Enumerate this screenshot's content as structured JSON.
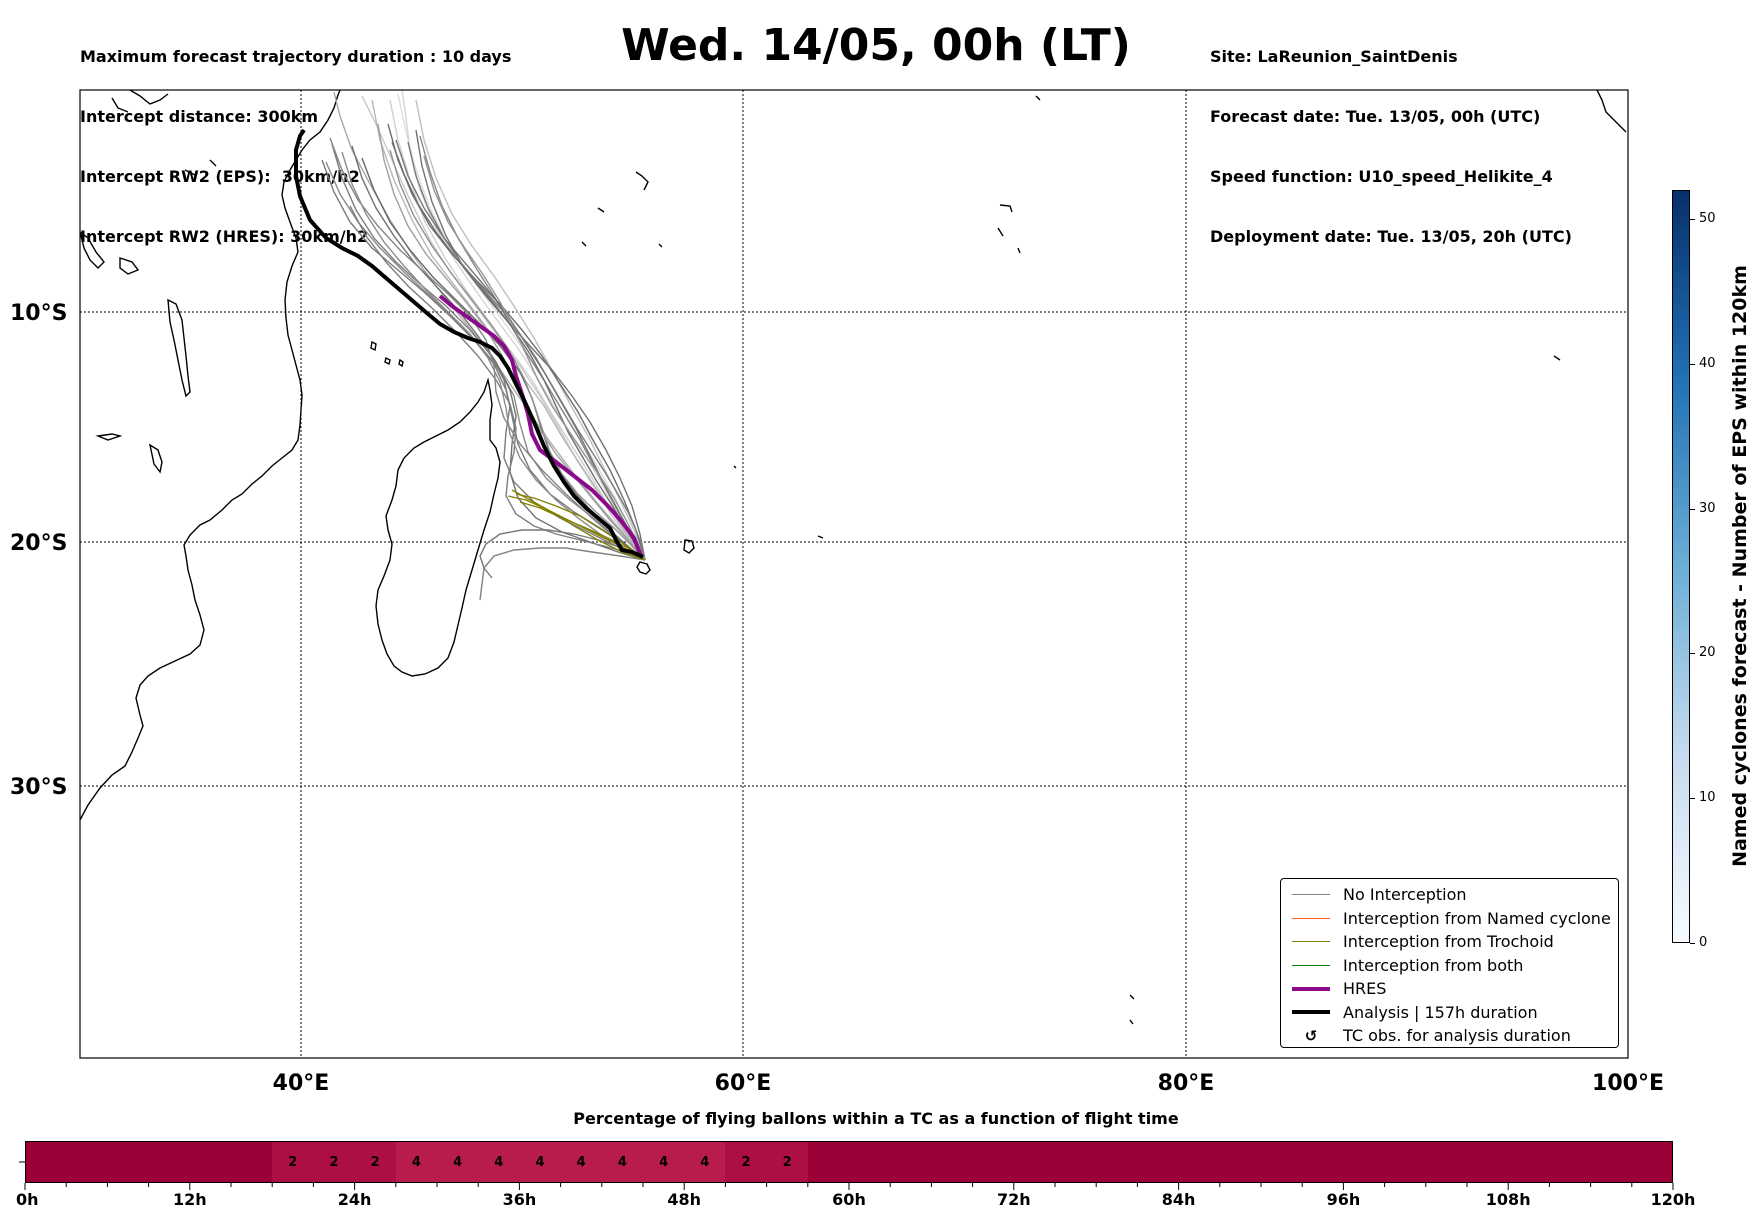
{
  "header": {
    "left_lines": [
      "Maximum forecast trajectory duration : 10 days",
      "Intercept distance: 300km",
      "Intercept RW2 (EPS):  30km/h2",
      "Intercept RW2 (HRES): 30km/h2"
    ],
    "title": "Wed. 14/05, 00h (LT)",
    "right_lines": [
      "Site: LaReunion_SaintDenis",
      "Forecast date: Tue. 13/05, 00h (UTC)",
      "Speed function: U10_speed_Helikite_4",
      "Deployment date: Tue. 13/05, 20h (UTC)"
    ]
  },
  "map": {
    "lat_labels": [
      "10°S",
      "20°S",
      "30°S"
    ],
    "lon_labels": [
      "40°E",
      "60°E",
      "80°E",
      "100°E"
    ],
    "hres_color": "#8b0a8b",
    "analysis_color": "#000000"
  },
  "legend": {
    "items": [
      {
        "label": "No Interception",
        "color": "#808080",
        "kind": "line"
      },
      {
        "label": "Interception from Named cyclone",
        "color": "#ff5f1f",
        "kind": "line"
      },
      {
        "label": "Interception from Trochoid",
        "color": "#808000",
        "kind": "line"
      },
      {
        "label": "Interception from both",
        "color": "#008000",
        "kind": "line"
      },
      {
        "label": "HRES",
        "color": "#8b0a8b",
        "kind": "thick"
      },
      {
        "label": "Analysis | 157h duration",
        "color": "#000000",
        "kind": "thick"
      },
      {
        "label": "TC obs. for analysis duration",
        "color": "#000000",
        "kind": "symbol"
      }
    ],
    "symbol_glyph": "↺"
  },
  "colorbar": {
    "title": "Named cyclones forecast - Number of EPS within 120km",
    "ticks": [
      "0",
      "10",
      "20",
      "30",
      "40",
      "50"
    ],
    "min": 0,
    "max": 52,
    "color_low": "#f7fbff",
    "color_high": "#08306b"
  },
  "strip": {
    "title": "Percentage of flying ballons within a TC as a function of flight time",
    "x_labels": [
      "0h",
      "12h",
      "24h",
      "36h",
      "48h",
      "60h",
      "72h",
      "84h",
      "96h",
      "108h",
      "120h"
    ],
    "hours_per_cell": 3,
    "total_hours": 120,
    "cells": [
      {
        "hour": 18,
        "value": "2"
      },
      {
        "hour": 21,
        "value": "2"
      },
      {
        "hour": 24,
        "value": "2"
      },
      {
        "hour": 27,
        "value": "4"
      },
      {
        "hour": 30,
        "value": "4"
      },
      {
        "hour": 33,
        "value": "4"
      },
      {
        "hour": 36,
        "value": "4"
      },
      {
        "hour": 39,
        "value": "4"
      },
      {
        "hour": 42,
        "value": "4"
      },
      {
        "hour": 45,
        "value": "4"
      },
      {
        "hour": 48,
        "value": "4"
      },
      {
        "hour": 51,
        "value": "2"
      },
      {
        "hour": 54,
        "value": "2"
      }
    ],
    "base_color": "#9b0039",
    "color_2": "#ad0f44",
    "color_4": "#b81c4c"
  }
}
